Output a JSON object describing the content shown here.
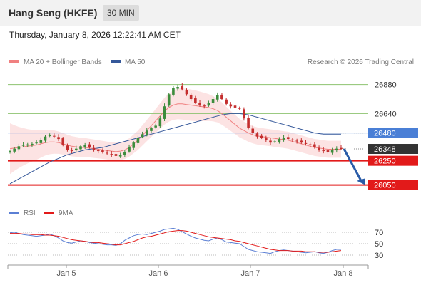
{
  "header": {
    "title": "Hang Seng (HKFE)",
    "timeframe": "30 MIN",
    "timestamp": "Thursday, January 8, 2026 12:22:41 AM CET"
  },
  "legend": {
    "bollinger_label": "MA 20 + Bollinger Bands",
    "bollinger_color": "#f08080",
    "ma50_label": "MA 50",
    "ma50_color": "#35589a",
    "credit": "Research © 2026 Trading Central"
  },
  "rsi_legend": {
    "rsi_label": "RSI",
    "rsi_color": "#5b7fd4",
    "ma_label": "9MA",
    "ma_color": "#e21a1a"
  },
  "colors": {
    "resistance": "#8dc26f",
    "pivot": "#4a7fd6",
    "support": "#e21a1a",
    "current": "#333333",
    "candle_up": "#3c8c3c",
    "candle_down": "#c42d2d",
    "band_fill": "#fcdede"
  },
  "chart_data": {
    "type": "candlestick",
    "instrument": "Hang Seng (HKFE)",
    "interval": "30 MIN",
    "ylim": [
      25930,
      26990
    ],
    "x_ticks": [
      "Jan 5",
      "Jan 6",
      "Jan 7",
      "Jan 8"
    ],
    "levels": [
      {
        "name": "resistance2",
        "value": "26880",
        "kind": "resistance"
      },
      {
        "name": "resistance1",
        "value": "26640",
        "kind": "resistance"
      },
      {
        "name": "pivot",
        "value": "26480",
        "kind": "pivot"
      },
      {
        "name": "last",
        "value": "26348",
        "kind": "current"
      },
      {
        "name": "support1",
        "value": "26250",
        "kind": "support"
      },
      {
        "name": "support2",
        "value": "26050",
        "kind": "support"
      }
    ],
    "series": [
      {
        "name": "Price",
        "close": [
          26330,
          26350,
          26370,
          26380,
          26385,
          26390,
          26400,
          26420,
          26450,
          26460,
          26450,
          26430,
          26380,
          26340,
          26330,
          26350,
          26370,
          26380,
          26360,
          26340,
          26330,
          26320,
          26310,
          26300,
          26290,
          26300,
          26320,
          26360,
          26400,
          26440,
          26470,
          26500,
          26520,
          26540,
          26600,
          26700,
          26800,
          26850,
          26860,
          26840,
          26800,
          26760,
          26730,
          26710,
          26700,
          26730,
          26760,
          26790,
          26760,
          26720,
          26700,
          26690,
          26680,
          26600,
          26520,
          26480,
          26450,
          26440,
          26420,
          26400,
          26410,
          26430,
          26440,
          26430,
          26420,
          26410,
          26400,
          26390,
          26380,
          26360,
          26340,
          26330,
          26320,
          26340,
          26350,
          26348
        ]
      },
      {
        "name": "MA 20",
        "values": [
          26350,
          26355,
          26360,
          26365,
          26370,
          26375,
          26380,
          26390,
          26400,
          26405,
          26405,
          26400,
          26390,
          26380,
          26370,
          26365,
          26360,
          26360,
          26355,
          26350,
          26345,
          26340,
          26335,
          26330,
          26325,
          26330,
          26340,
          26360,
          26390,
          26420,
          26460,
          26500,
          26540,
          26580,
          26620,
          26660,
          26690,
          26710,
          26720,
          26720,
          26715,
          26710,
          26705,
          26700,
          26695,
          26690,
          26680,
          26665,
          26640,
          26610,
          26580,
          26550,
          26520,
          26500,
          26480,
          26465,
          26455,
          26450,
          26445,
          26440,
          26435,
          26430,
          26425,
          26420,
          26410,
          26400,
          26390,
          26380,
          26370,
          26360,
          26355,
          26350,
          26345,
          26345,
          26345,
          26345
        ]
      },
      {
        "name": "MA 50",
        "values": [
          26060,
          26080,
          26100,
          26120,
          26140,
          26160,
          26180,
          26200,
          26220,
          26240,
          26255,
          26270,
          26285,
          26300,
          26310,
          26320,
          26330,
          26340,
          26345,
          26350,
          26355,
          26360,
          26370,
          26380,
          26390,
          26400,
          26410,
          26420,
          26430,
          26440,
          26450,
          26460,
          26470,
          26480,
          26490,
          26500,
          26510,
          26520,
          26530,
          26540,
          26550,
          26560,
          26570,
          26580,
          26590,
          26600,
          26610,
          26620,
          26630,
          26635,
          26640,
          26640,
          26640,
          26635,
          26630,
          26620,
          26610,
          26600,
          26590,
          26580,
          26570,
          26560,
          26550,
          26540,
          26530,
          26520,
          26510,
          26500,
          26490,
          26480,
          26475,
          26470,
          26470,
          26470,
          26470,
          26470
        ]
      },
      {
        "name": "RSI",
        "values": [
          69,
          70,
          68,
          66,
          65,
          64,
          63,
          64,
          65,
          67,
          64,
          60,
          55,
          52,
          51,
          53,
          55,
          54,
          52,
          51,
          50,
          49,
          48,
          48,
          47,
          50,
          56,
          60,
          64,
          66,
          67,
          66,
          68,
          70,
          72,
          75,
          76,
          77,
          75,
          71,
          67,
          63,
          60,
          58,
          56,
          55,
          58,
          60,
          57,
          53,
          52,
          51,
          50,
          45,
          40,
          38,
          36,
          35,
          34,
          33,
          36,
          38,
          39,
          38,
          37,
          36,
          35,
          34,
          35,
          36,
          34,
          33,
          35,
          38,
          40,
          40
        ]
      },
      {
        "name": "9MA",
        "values": [
          68,
          68,
          68,
          67,
          67,
          66,
          66,
          66,
          65,
          65,
          64,
          63,
          61,
          59,
          57,
          56,
          55,
          54,
          53,
          52,
          52,
          51,
          50,
          49,
          48,
          48,
          50,
          52,
          54,
          57,
          60,
          62,
          63,
          65,
          67,
          69,
          71,
          72,
          73,
          73,
          72,
          70,
          68,
          66,
          64,
          62,
          61,
          60,
          59,
          58,
          57,
          55,
          54,
          52,
          50,
          48,
          46,
          44,
          42,
          40,
          39,
          38,
          38,
          38,
          37,
          37,
          37,
          36,
          36,
          36,
          35,
          35,
          35,
          36,
          37,
          38
        ]
      }
    ],
    "rsi_levels": [
      "70",
      "50",
      "30"
    ]
  }
}
